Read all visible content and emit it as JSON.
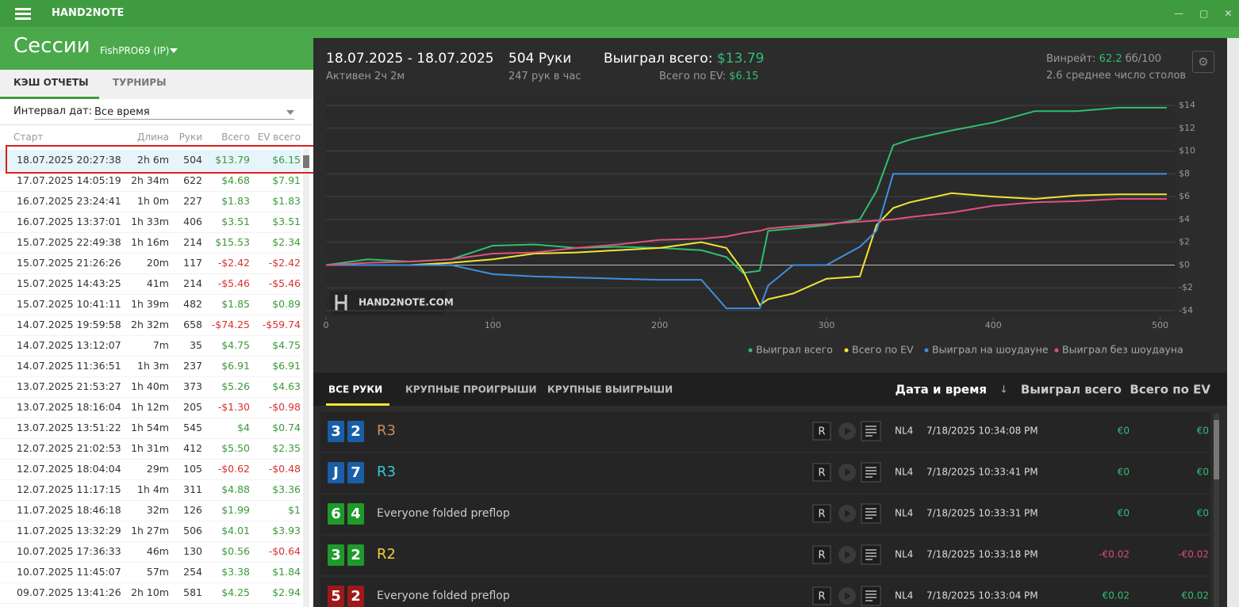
{
  "app": {
    "title": "HAND2NOTE",
    "page_title": "Сессии",
    "player": "FishPRO69 (IP)"
  },
  "left": {
    "tabs": [
      "КЭШ ОТЧЕТЫ",
      "ТУРНИРЫ"
    ],
    "interval_label": "Интервал дат:",
    "interval_value": "Все время",
    "columns": [
      "Старт",
      "Длина",
      "Руки",
      "Всего",
      "EV всего"
    ],
    "rows": [
      [
        "18.07.2025 20:27:38",
        "2h 6m",
        "504",
        "$13.79",
        "$6.15"
      ],
      [
        "17.07.2025 14:05:19",
        "2h 34m",
        "622",
        "$4.68",
        "$7.91"
      ],
      [
        "16.07.2025 23:24:41",
        "1h 0m",
        "227",
        "$1.83",
        "$1.83"
      ],
      [
        "16.07.2025 13:37:01",
        "1h 33m",
        "406",
        "$3.51",
        "$3.51"
      ],
      [
        "15.07.2025 22:49:38",
        "1h 16m",
        "214",
        "$15.53",
        "$2.34"
      ],
      [
        "15.07.2025 21:26:26",
        "20m",
        "117",
        "-$2.42",
        "-$2.42"
      ],
      [
        "15.07.2025 14:43:25",
        "41m",
        "214",
        "-$5.46",
        "-$5.46"
      ],
      [
        "15.07.2025 10:41:11",
        "1h 39m",
        "482",
        "$1.85",
        "$0.89"
      ],
      [
        "14.07.2025 19:59:58",
        "2h 32m",
        "658",
        "-$74.25",
        "-$59.74"
      ],
      [
        "14.07.2025 13:12:07",
        "7m",
        "35",
        "$4.75",
        "$4.75"
      ],
      [
        "14.07.2025 11:36:51",
        "1h 3m",
        "237",
        "$6.91",
        "$6.91"
      ],
      [
        "13.07.2025 21:53:27",
        "1h 40m",
        "373",
        "$5.26",
        "$4.63"
      ],
      [
        "13.07.2025 18:16:04",
        "1h 12m",
        "205",
        "-$1.30",
        "-$0.98"
      ],
      [
        "13.07.2025 13:51:22",
        "1h 54m",
        "545",
        "$4",
        "$0.74"
      ],
      [
        "12.07.2025 21:02:53",
        "1h 31m",
        "412",
        "$5.50",
        "$2.35"
      ],
      [
        "12.07.2025 18:04:04",
        "29m",
        "105",
        "-$0.62",
        "-$0.48"
      ],
      [
        "12.07.2025 11:17:15",
        "1h 4m",
        "311",
        "$4.88",
        "$3.36"
      ],
      [
        "11.07.2025 18:46:18",
        "32m",
        "126",
        "$1.99",
        "$1"
      ],
      [
        "11.07.2025 13:32:29",
        "1h 27m",
        "506",
        "$4.01",
        "$3.93"
      ],
      [
        "10.07.2025 17:36:33",
        "46m",
        "130",
        "$0.56",
        "-$0.64"
      ],
      [
        "10.07.2025 11:45:07",
        "57m",
        "254",
        "$3.38",
        "$1.84"
      ],
      [
        "09.07.2025 13:41:26",
        "2h 10m",
        "581",
        "$4.25",
        "$2.94"
      ]
    ]
  },
  "summary": {
    "dates": "18.07.2025 - 18.07.2025",
    "active": "Активен 2ч 2м",
    "hands": "504 Руки",
    "rate": "247 рук в час",
    "won_label": "Выиграл всего:",
    "won": "$13.79",
    "ev_label": "Всего по EV:",
    "ev": "$6.15",
    "winrate_label": "Винрейт:",
    "winrate": "62.2",
    "winrate_unit": "бб/100",
    "tables": "2.6 среднее число столов"
  },
  "chart": {
    "type": "line",
    "watermark": "HAND2NOTE.COM",
    "xlim": [
      0,
      504
    ],
    "ylim": [
      -4,
      14
    ],
    "xticks": [
      0,
      100,
      200,
      300,
      400,
      500
    ],
    "yticks": [
      {
        "value": -4,
        "label": "-$4"
      },
      {
        "value": -2,
        "label": "-$2"
      },
      {
        "value": 0,
        "label": "$0"
      },
      {
        "value": 2,
        "label": "$2"
      },
      {
        "value": 4,
        "label": "$4"
      },
      {
        "value": 6,
        "label": "$6"
      },
      {
        "value": 8,
        "label": "$8"
      },
      {
        "value": 10,
        "label": "$10"
      },
      {
        "value": 12,
        "label": "$12"
      },
      {
        "value": 14,
        "label": "$14"
      }
    ],
    "x": [
      0,
      25,
      50,
      75,
      100,
      125,
      150,
      175,
      200,
      225,
      240,
      250,
      260,
      265,
      280,
      300,
      320,
      330,
      340,
      350,
      375,
      400,
      425,
      450,
      475,
      504
    ],
    "series": [
      {
        "name": "Выиграл всего",
        "color": "#2fbf71",
        "values": [
          0,
          0.5,
          0.3,
          0.5,
          1.7,
          1.8,
          1.5,
          1.6,
          1.5,
          1.3,
          0.7,
          -0.7,
          -0.5,
          3,
          3.2,
          3.5,
          4,
          6.5,
          10.5,
          11,
          11.8,
          12.5,
          13.5,
          13.5,
          13.8,
          13.8
        ]
      },
      {
        "name": "Всего по EV",
        "color": "#f2e534",
        "values": [
          0,
          0,
          0,
          0.2,
          0.5,
          1,
          1.1,
          1.3,
          1.5,
          2,
          1.5,
          -0.5,
          -3.5,
          -3,
          -2.5,
          -1.2,
          -1,
          3.5,
          5,
          5.5,
          6.3,
          6,
          5.8,
          6.1,
          6.2,
          6.2
        ]
      },
      {
        "name": "Выиграл на шоудауне",
        "color": "#3f8fe0",
        "values": [
          0,
          0,
          0,
          0,
          -0.8,
          -1,
          -1.1,
          -1.2,
          -1.3,
          -1.3,
          -3.8,
          -3.8,
          -3.8,
          -1.8,
          0,
          0,
          1.6,
          3,
          8,
          8,
          8,
          8,
          8,
          8,
          8,
          8
        ]
      },
      {
        "name": "Выиграл без шоудауна",
        "color": "#e0527c",
        "values": [
          0,
          0.2,
          0.3,
          0.5,
          1,
          1.1,
          1.5,
          1.8,
          2.2,
          2.3,
          2.5,
          2.8,
          3,
          3.2,
          3.4,
          3.6,
          3.8,
          3.9,
          4,
          4.2,
          4.6,
          5.2,
          5.5,
          5.6,
          5.8,
          5.8
        ]
      }
    ]
  },
  "hands": {
    "tabs": [
      "ВСЕ РУКИ",
      "КРУПНЫЕ ПРОИГРЫШИ",
      "КРУПНЫЕ ВЫИГРЫШИ"
    ],
    "columns": [
      "Дата и время",
      "Выиграл всего",
      "Всего по EV"
    ],
    "replay": "R",
    "rows": [
      {
        "cards": [
          "3",
          "2"
        ],
        "card_color": "#1a5ea8",
        "action": "R3",
        "action_color": "#c98a5a",
        "stake": "NL4",
        "time": "7/18/2025 10:34:08 PM",
        "won": "€0",
        "ev": "€0"
      },
      {
        "cards": [
          "J",
          "7"
        ],
        "card_color": "#1a5ea8",
        "action": "R3",
        "action_color": "#3cc8c8",
        "stake": "NL4",
        "time": "7/18/2025 10:33:41 PM",
        "won": "€0",
        "ev": "€0"
      },
      {
        "cards": [
          "6",
          "4"
        ],
        "card_color": "#1e9a2a",
        "action": "Everyone folded preflop",
        "action_color": "#cccccc",
        "stake": "NL4",
        "time": "7/18/2025 10:33:31 PM",
        "won": "€0",
        "ev": "€0"
      },
      {
        "cards": [
          "3",
          "2"
        ],
        "card_color": "#1e9a2a",
        "action": "R2",
        "action_color": "#e8d23a",
        "stake": "NL4",
        "time": "7/18/2025 10:33:18 PM",
        "won": "-€0.02",
        "ev": "-€0.02"
      },
      {
        "cards": [
          "5",
          "2"
        ],
        "card_color": "#a01818",
        "action": "Everyone folded preflop",
        "action_color": "#cccccc",
        "stake": "NL4",
        "time": "7/18/2025 10:33:04 PM",
        "won": "€0.02",
        "ev": "€0.02"
      }
    ]
  }
}
